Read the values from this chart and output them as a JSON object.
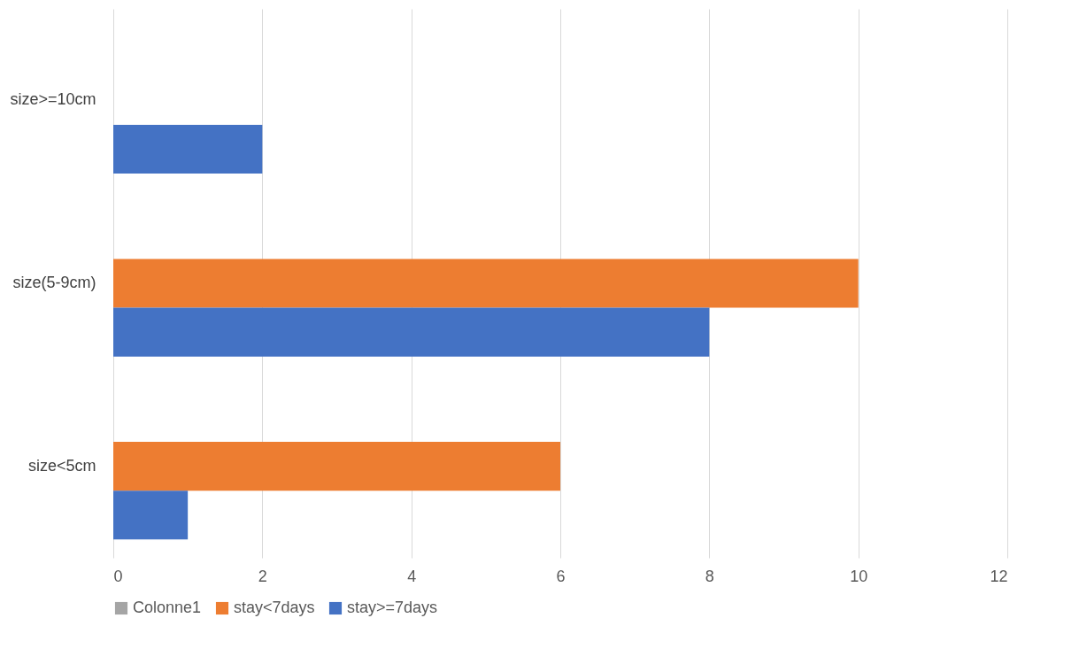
{
  "chart_data": {
    "type": "bar",
    "orientation": "horizontal",
    "categories": [
      "size>=10cm",
      "size(5-9cm)",
      "size<5cm"
    ],
    "series": [
      {
        "name": "Colonne1",
        "color": "#a5a5a5",
        "values": [
          null,
          null,
          null
        ]
      },
      {
        "name": "stay<7days",
        "color": "#ed7d31",
        "values": [
          null,
          10,
          6
        ]
      },
      {
        "name": "stay>=7days",
        "color": "#4472c4",
        "values": [
          2,
          8,
          1
        ]
      }
    ],
    "xlim": [
      0,
      12
    ],
    "xticks": [
      0,
      2,
      4,
      6,
      8,
      10,
      12
    ],
    "grid": "x",
    "legend": "bottom"
  }
}
